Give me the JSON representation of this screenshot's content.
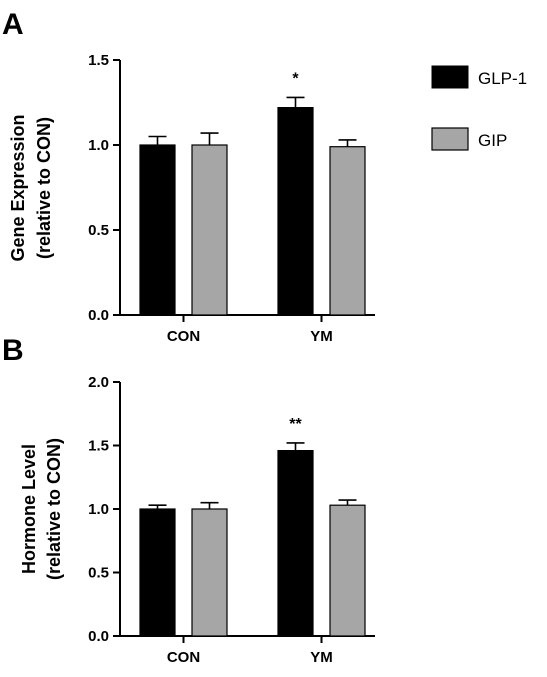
{
  "chart_data": [
    {
      "panel": "A",
      "type": "bar",
      "categories": [
        "CON",
        "YM"
      ],
      "series": [
        {
          "name": "GLP-1",
          "values": [
            1.0,
            1.22
          ],
          "errors": [
            0.05,
            0.06
          ],
          "color": "#000000"
        },
        {
          "name": "GIP",
          "values": [
            1.0,
            0.99
          ],
          "errors": [
            0.07,
            0.04
          ],
          "color": "#a6a6a6"
        }
      ],
      "significance": [
        "",
        "*"
      ],
      "ylabel_lines": [
        "Gene Expression",
        "(relative to CON)"
      ],
      "ylim": [
        0,
        1.5
      ],
      "yticks": [
        "0.0",
        "0.5",
        "1.0",
        "1.5"
      ],
      "grid": false
    },
    {
      "panel": "B",
      "type": "bar",
      "categories": [
        "CON",
        "YM"
      ],
      "series": [
        {
          "name": "GLP-1",
          "values": [
            1.0,
            1.46
          ],
          "errors": [
            0.03,
            0.06
          ],
          "color": "#000000"
        },
        {
          "name": "GIP",
          "values": [
            1.0,
            1.03
          ],
          "errors": [
            0.05,
            0.04
          ],
          "color": "#a6a6a6"
        }
      ],
      "significance": [
        "",
        "**"
      ],
      "ylabel_lines": [
        "Hormone Level",
        "(relative to CON)"
      ],
      "ylim": [
        0,
        2.0
      ],
      "yticks": [
        "0.0",
        "0.5",
        "1.0",
        "1.5",
        "2.0"
      ],
      "grid": false
    }
  ],
  "legend": {
    "placement": "top-right",
    "items": [
      {
        "label": "GLP-1",
        "color": "#000000"
      },
      {
        "label": "GIP",
        "color": "#a6a6a6"
      }
    ]
  }
}
